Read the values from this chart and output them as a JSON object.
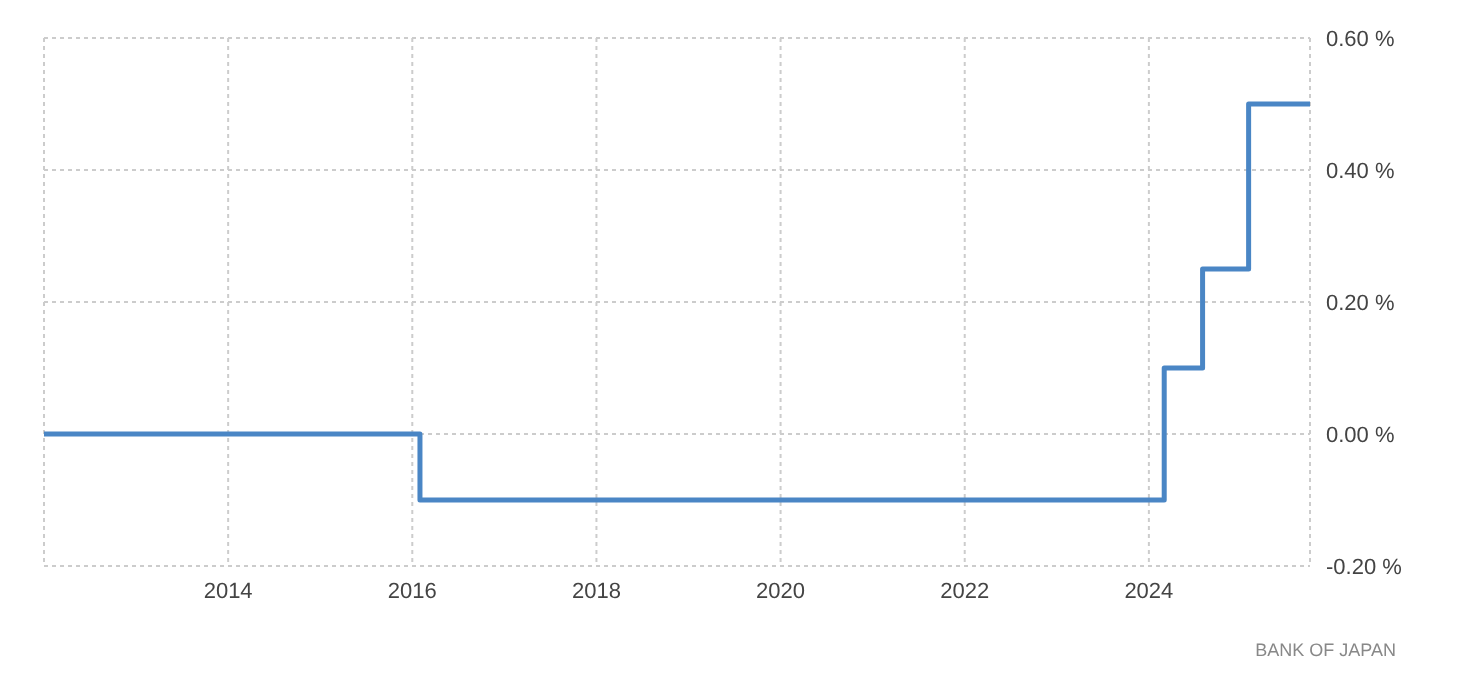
{
  "chart_data": {
    "type": "step",
    "x": [
      "2012-01",
      "2016-02",
      "2024-03",
      "2024-08",
      "2025-02",
      "2025-10"
    ],
    "series": [
      {
        "color": "#4a86c5",
        "values": [
          0,
          -0.1,
          0.1,
          0.25,
          0.5,
          0.5
        ]
      }
    ],
    "xlim": [
      "2012-01",
      "2025-10"
    ],
    "xticks": [
      "2014",
      "2016",
      "2018",
      "2020",
      "2022",
      "2024"
    ],
    "ylim": [
      -0.2,
      0.6
    ],
    "yticks": [
      {
        "value": -0.2,
        "label": "-0.20 %"
      },
      {
        "value": 0,
        "label": "0.00 %"
      },
      {
        "value": 0.2,
        "label": "0.20 %"
      },
      {
        "value": 0.4,
        "label": "0.40 %"
      },
      {
        "value": 0.6,
        "label": "0.60 %"
      }
    ],
    "grid": true,
    "line_style": "solid",
    "marker": "none",
    "annotations": [
      "BANK OF JAPAN"
    ]
  }
}
